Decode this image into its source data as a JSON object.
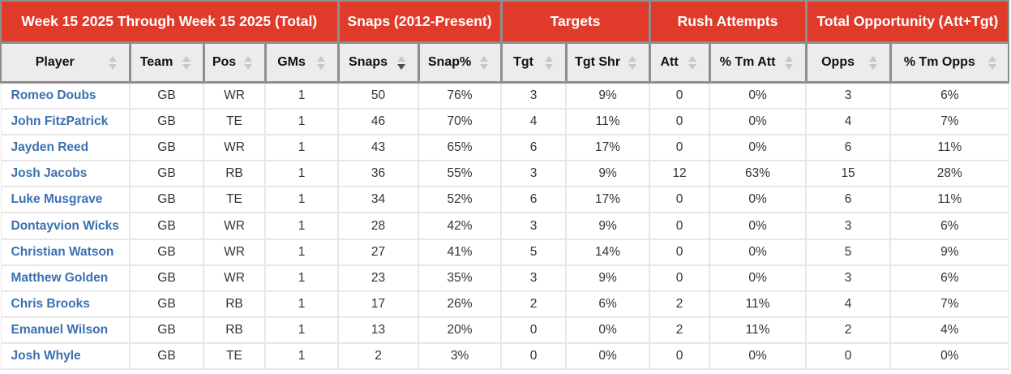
{
  "colors": {
    "group_header_bg": "#e03b2a",
    "group_header_text": "#ffffff",
    "column_header_bg": "#ececec",
    "header_border": "#8e8e8e",
    "body_border": "#e7e7e7",
    "player_link": "#3a70b2",
    "body_text": "#333333",
    "sort_arrow_inactive": "#c8c8c8",
    "sort_arrow_active": "#4d4d4d"
  },
  "table": {
    "group_headers": [
      {
        "label": "Week 15 2025 Through Week 15 2025 (Total)",
        "colspan": 4
      },
      {
        "label": "Snaps (2012-Present)",
        "colspan": 2
      },
      {
        "label": "Targets",
        "colspan": 2
      },
      {
        "label": "Rush Attempts",
        "colspan": 2
      },
      {
        "label": "Total Opportunity (Att+Tgt)",
        "colspan": 2
      }
    ],
    "columns": [
      {
        "label": "Player",
        "sort": "none"
      },
      {
        "label": "Team",
        "sort": "none"
      },
      {
        "label": "Pos",
        "sort": "none"
      },
      {
        "label": "GMs",
        "sort": "none"
      },
      {
        "label": "Snaps",
        "sort": "desc"
      },
      {
        "label": "Snap%",
        "sort": "none"
      },
      {
        "label": "Tgt",
        "sort": "none"
      },
      {
        "label": "Tgt Shr",
        "sort": "none"
      },
      {
        "label": "Att",
        "sort": "none"
      },
      {
        "label": "% Tm Att",
        "sort": "none"
      },
      {
        "label": "Opps",
        "sort": "none"
      },
      {
        "label": "% Tm Opps",
        "sort": "none"
      }
    ],
    "rows": [
      {
        "player": "Romeo Doubs",
        "team": "GB",
        "pos": "WR",
        "gms": "1",
        "snaps": "50",
        "snap_pct": "76%",
        "tgt": "3",
        "tgt_shr": "9%",
        "att": "0",
        "tm_att_pct": "0%",
        "opps": "3",
        "tm_opps_pct": "6%"
      },
      {
        "player": "John FitzPatrick",
        "team": "GB",
        "pos": "TE",
        "gms": "1",
        "snaps": "46",
        "snap_pct": "70%",
        "tgt": "4",
        "tgt_shr": "11%",
        "att": "0",
        "tm_att_pct": "0%",
        "opps": "4",
        "tm_opps_pct": "7%"
      },
      {
        "player": "Jayden Reed",
        "team": "GB",
        "pos": "WR",
        "gms": "1",
        "snaps": "43",
        "snap_pct": "65%",
        "tgt": "6",
        "tgt_shr": "17%",
        "att": "0",
        "tm_att_pct": "0%",
        "opps": "6",
        "tm_opps_pct": "11%"
      },
      {
        "player": "Josh Jacobs",
        "team": "GB",
        "pos": "RB",
        "gms": "1",
        "snaps": "36",
        "snap_pct": "55%",
        "tgt": "3",
        "tgt_shr": "9%",
        "att": "12",
        "tm_att_pct": "63%",
        "opps": "15",
        "tm_opps_pct": "28%"
      },
      {
        "player": "Luke Musgrave",
        "team": "GB",
        "pos": "TE",
        "gms": "1",
        "snaps": "34",
        "snap_pct": "52%",
        "tgt": "6",
        "tgt_shr": "17%",
        "att": "0",
        "tm_att_pct": "0%",
        "opps": "6",
        "tm_opps_pct": "11%"
      },
      {
        "player": "Dontayvion Wicks",
        "team": "GB",
        "pos": "WR",
        "gms": "1",
        "snaps": "28",
        "snap_pct": "42%",
        "tgt": "3",
        "tgt_shr": "9%",
        "att": "0",
        "tm_att_pct": "0%",
        "opps": "3",
        "tm_opps_pct": "6%"
      },
      {
        "player": "Christian Watson",
        "team": "GB",
        "pos": "WR",
        "gms": "1",
        "snaps": "27",
        "snap_pct": "41%",
        "tgt": "5",
        "tgt_shr": "14%",
        "att": "0",
        "tm_att_pct": "0%",
        "opps": "5",
        "tm_opps_pct": "9%"
      },
      {
        "player": "Matthew Golden",
        "team": "GB",
        "pos": "WR",
        "gms": "1",
        "snaps": "23",
        "snap_pct": "35%",
        "tgt": "3",
        "tgt_shr": "9%",
        "att": "0",
        "tm_att_pct": "0%",
        "opps": "3",
        "tm_opps_pct": "6%"
      },
      {
        "player": "Chris Brooks",
        "team": "GB",
        "pos": "RB",
        "gms": "1",
        "snaps": "17",
        "snap_pct": "26%",
        "tgt": "2",
        "tgt_shr": "6%",
        "att": "2",
        "tm_att_pct": "11%",
        "opps": "4",
        "tm_opps_pct": "7%"
      },
      {
        "player": "Emanuel Wilson",
        "team": "GB",
        "pos": "RB",
        "gms": "1",
        "snaps": "13",
        "snap_pct": "20%",
        "tgt": "0",
        "tgt_shr": "0%",
        "att": "2",
        "tm_att_pct": "11%",
        "opps": "2",
        "tm_opps_pct": "4%"
      },
      {
        "player": "Josh Whyle",
        "team": "GB",
        "pos": "TE",
        "gms": "1",
        "snaps": "2",
        "snap_pct": "3%",
        "tgt": "0",
        "tgt_shr": "0%",
        "att": "0",
        "tm_att_pct": "0%",
        "opps": "0",
        "tm_opps_pct": "0%"
      }
    ]
  }
}
